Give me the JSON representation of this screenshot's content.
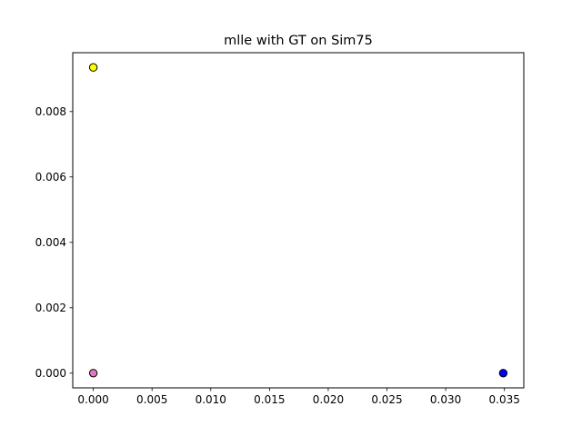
{
  "chart_data": {
    "type": "scatter",
    "title": "mlle with GT on Sim75",
    "xlabel": "",
    "ylabel": "",
    "xlim": [
      -0.00175,
      0.03665
    ],
    "ylim": [
      -0.00045,
      0.0098
    ],
    "x_ticks": [
      0.0,
      0.005,
      0.01,
      0.015,
      0.02,
      0.025,
      0.03,
      0.035
    ],
    "x_tick_labels": [
      "0.000",
      "0.005",
      "0.010",
      "0.015",
      "0.020",
      "0.025",
      "0.030",
      "0.035"
    ],
    "y_ticks": [
      0.0,
      0.002,
      0.004,
      0.006,
      0.008
    ],
    "y_tick_labels": [
      "0.000",
      "0.002",
      "0.004",
      "0.006",
      "0.008"
    ],
    "grid": false,
    "legend": "none",
    "points": [
      {
        "x": 0.0,
        "y": 0.00935,
        "color": "#ffff00"
      },
      {
        "x": 0.0,
        "y": 0.0,
        "color": "#e377c2"
      },
      {
        "x": 0.0349,
        "y": 0.0,
        "color": "#0000ff"
      }
    ]
  }
}
